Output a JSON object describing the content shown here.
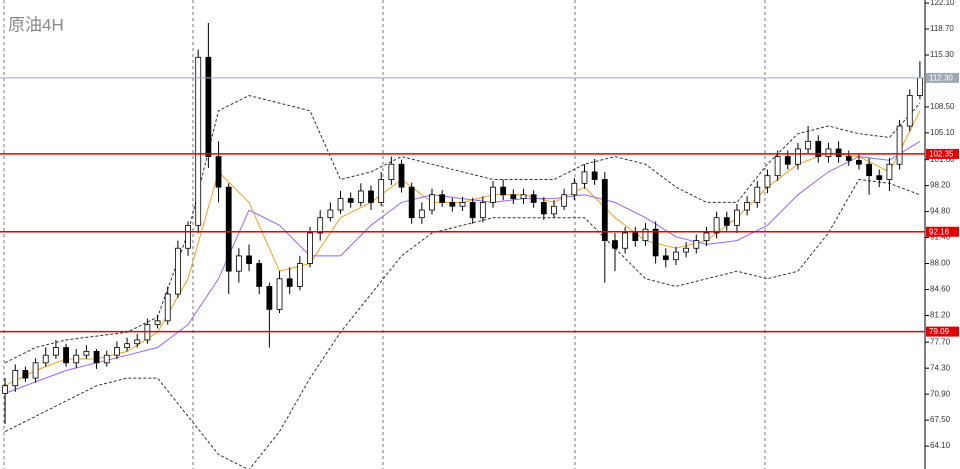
{
  "title": "原油4H",
  "chart_data": {
    "type": "candlestick",
    "open": [
      71,
      72,
      74,
      73,
      75,
      76,
      77,
      75,
      76,
      76.5,
      75,
      76,
      77,
      77.5,
      78,
      80,
      80.5,
      84,
      90,
      93,
      115,
      102,
      98,
      87,
      89,
      88,
      85,
      82,
      86,
      85,
      88,
      92,
      94,
      95,
      96.5,
      96,
      97.5,
      96,
      99,
      101,
      98,
      94,
      95,
      97,
      96,
      95.5,
      96,
      94,
      96,
      98,
      97,
      96.5,
      97,
      96,
      94.5,
      95.5,
      97,
      98.5,
      100,
      99,
      91,
      90,
      92,
      91,
      92.5,
      89,
      88.5,
      89.5,
      90,
      91,
      92,
      94,
      93,
      95,
      96,
      98,
      99.5,
      102,
      101,
      103,
      104,
      102,
      103,
      102,
      101.5,
      101,
      99.5,
      99,
      101,
      106,
      110
    ],
    "high": [
      73,
      74.8,
      74.5,
      75.6,
      77,
      78,
      77.5,
      76.8,
      77.3,
      76.8,
      76.6,
      77.8,
      78.3,
      78.8,
      80.8,
      81.3,
      85,
      91,
      93.5,
      116,
      119.5,
      104,
      98.5,
      90,
      90.5,
      88.5,
      85.5,
      87,
      87.5,
      89,
      92.8,
      95,
      96,
      97.5,
      97.3,
      98.5,
      98.2,
      100,
      102,
      101.6,
      98.6,
      96,
      97.8,
      97.6,
      96.6,
      96.7,
      96.6,
      96.8,
      98.8,
      99,
      97.7,
      97.8,
      97.6,
      96.7,
      96.3,
      97.8,
      99.2,
      101,
      101.7,
      100,
      92,
      92.8,
      92.8,
      93.3,
      93.5,
      90,
      90.2,
      90.8,
      91.8,
      92.8,
      94.8,
      94.8,
      95.8,
      96.8,
      98.8,
      100.3,
      102.8,
      102.8,
      103.8,
      106,
      104.8,
      103.8,
      104,
      102.8,
      102.3,
      101.8,
      100.3,
      101.8,
      106.8,
      110.8,
      114.5
    ],
    "low": [
      67,
      71.2,
      72.5,
      72.4,
      74.5,
      75.5,
      74.5,
      74.3,
      75.5,
      74.2,
      74.5,
      75.5,
      76.5,
      77,
      77.5,
      79.5,
      80,
      83.5,
      89,
      92,
      100.5,
      96,
      84,
      85.5,
      87,
      84,
      77,
      81.5,
      84,
      84.5,
      87.5,
      91,
      93.5,
      94.5,
      95.3,
      95.5,
      95,
      95.5,
      98.3,
      97.3,
      93.2,
      93.2,
      94.4,
      95.4,
      94.8,
      94.9,
      93.2,
      93.4,
      95.3,
      96.3,
      95.8,
      95.8,
      95.3,
      93.7,
      94,
      95,
      96.3,
      97.8,
      98.3,
      85.5,
      87,
      89.3,
      90.2,
      90.3,
      88,
      87.5,
      87.8,
      88.8,
      89.3,
      90.3,
      91.3,
      92.3,
      92,
      94.3,
      95.3,
      97.2,
      98.8,
      100.3,
      100.3,
      102.3,
      101.2,
      101.2,
      101.2,
      100.8,
      100.3,
      97,
      98,
      97.5,
      100.3,
      105.3,
      109.5
    ],
    "close": [
      72,
      74,
      73,
      75,
      76,
      77,
      75,
      76,
      76.5,
      75,
      76,
      77,
      77.5,
      78,
      80,
      80.5,
      84,
      90,
      93,
      115,
      102,
      98,
      87,
      89,
      88,
      85,
      82,
      86,
      85,
      88,
      92,
      94,
      95,
      96.5,
      96,
      97.5,
      96,
      99,
      101,
      98,
      94,
      95,
      97,
      96,
      95.5,
      96,
      94,
      96,
      98,
      97,
      96.5,
      97,
      96,
      94.5,
      95.5,
      97,
      98.5,
      100,
      99,
      91,
      90,
      92,
      91,
      92.5,
      89,
      88.5,
      89.5,
      90,
      91,
      92,
      94,
      93,
      95,
      96,
      98,
      99.5,
      102,
      101,
      103,
      104,
      102,
      103,
      102,
      101.5,
      101,
      99.5,
      99,
      101,
      106,
      110,
      112.3
    ],
    "up_color": "#ffffff",
    "down_color": "#000000",
    "lines": [
      {
        "color": "#f0a020",
        "dash": false,
        "x": [
          0,
          3,
          6,
          9,
          12,
          15,
          18,
          21,
          24,
          27,
          30,
          33,
          36,
          39,
          42,
          45,
          48,
          51,
          54,
          57,
          60,
          63,
          66,
          69,
          72,
          75,
          78,
          81,
          84,
          87,
          90
        ],
        "values": [
          72,
          74,
          75.5,
          75.5,
          76.5,
          79,
          86,
          100,
          96,
          87,
          88,
          94,
          96,
          99,
          96,
          96,
          97,
          97,
          96,
          98,
          94,
          91,
          90,
          91,
          94,
          98,
          101,
          102.5,
          102,
          100,
          108
        ]
      },
      {
        "color": "#9966ee",
        "dash": false,
        "x": [
          0,
          3,
          6,
          9,
          12,
          15,
          18,
          21,
          24,
          27,
          30,
          33,
          36,
          39,
          42,
          45,
          48,
          51,
          54,
          57,
          60,
          63,
          66,
          69,
          72,
          75,
          78,
          81,
          84,
          87,
          90
        ],
        "values": [
          71,
          72.5,
          74,
          75,
          76,
          77,
          80,
          86,
          95,
          93,
          89,
          89,
          93,
          96,
          97,
          96.5,
          96,
          96.5,
          96.5,
          97,
          96,
          94,
          91.5,
          90.5,
          91,
          93,
          97,
          100,
          102,
          101.5,
          104
        ]
      },
      {
        "color": "#333333",
        "dash": true,
        "x": [
          0,
          3,
          6,
          9,
          12,
          15,
          18,
          21,
          24,
          27,
          30,
          33,
          36,
          39,
          42,
          45,
          48,
          51,
          54,
          57,
          60,
          63,
          66,
          69,
          72,
          75,
          78,
          81,
          84,
          87,
          90
        ],
        "values": [
          75,
          77,
          78,
          78.5,
          79,
          81,
          92,
          108,
          110,
          109,
          108,
          99,
          100,
          102,
          101,
          100,
          99,
          99,
          99,
          101,
          102,
          101,
          98,
          96,
          96,
          101,
          105,
          106,
          105,
          104.5,
          109
        ]
      },
      {
        "color": "#333333",
        "dash": true,
        "x": [
          0,
          3,
          6,
          9,
          12,
          15,
          18,
          21,
          24,
          27,
          30,
          33,
          36,
          39,
          42,
          45,
          48,
          51,
          54,
          57,
          60,
          63,
          66,
          69,
          72,
          75,
          78,
          81,
          84,
          87,
          90
        ],
        "values": [
          66,
          68,
          70,
          72,
          73,
          73,
          68,
          63,
          61,
          66,
          73,
          79,
          84,
          89,
          92,
          93,
          94,
          94,
          94,
          94,
          90,
          86,
          85,
          86,
          87,
          86,
          87,
          92,
          99,
          98.5,
          97
        ]
      }
    ],
    "levels": [
      {
        "value": 112.3,
        "label": "112.30",
        "color": "#a0a8b8"
      },
      {
        "value": 102.35,
        "color": "#e00000"
      },
      {
        "value": 92.16,
        "color": "#e00000"
      },
      {
        "value": 79.09,
        "color": "#e00000"
      }
    ],
    "ylim": [
      61.1,
      122.5
    ],
    "yticks": [
      {
        "value": 122.1,
        "label": "122.10"
      },
      {
        "value": 118.7,
        "label": "118.70"
      },
      {
        "value": 115.3,
        "label": "115.30"
      },
      {
        "value": 108.5,
        "label": "108.50"
      },
      {
        "value": 105.1,
        "label": "105.10"
      },
      {
        "value": 101.6,
        "label": "101.60"
      },
      {
        "value": 98.2,
        "label": "98.20"
      },
      {
        "value": 94.8,
        "label": "94.80"
      },
      {
        "value": 91.4,
        "label": "91.40"
      },
      {
        "value": 88,
        "label": "88.00"
      },
      {
        "value": 84.6,
        "label": "84.60"
      },
      {
        "value": 81.2,
        "label": "81.20"
      },
      {
        "value": 77.7,
        "label": "77.70"
      },
      {
        "value": 74.3,
        "label": "74.30"
      },
      {
        "value": 70.9,
        "label": "70.90"
      },
      {
        "value": 67.5,
        "label": "67.50"
      },
      {
        "value": 64.1,
        "label": "64.10"
      }
    ]
  }
}
